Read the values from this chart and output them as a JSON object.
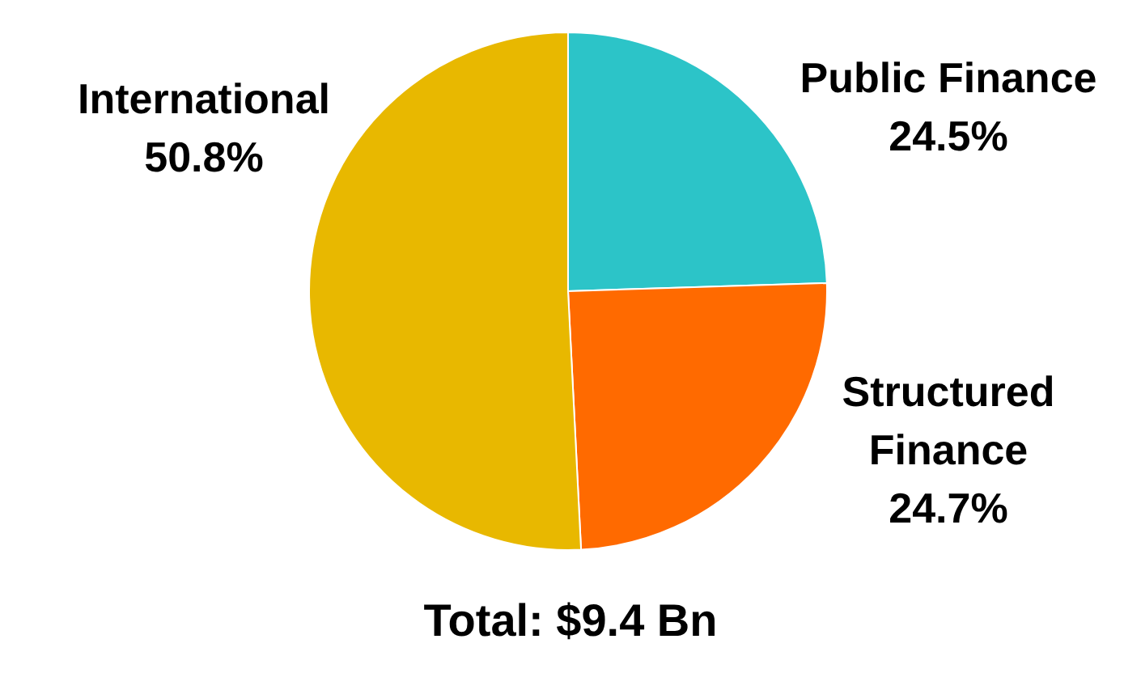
{
  "chart_data": {
    "type": "pie",
    "categories": [
      "Public Finance",
      "Structured Finance",
      "International"
    ],
    "values": [
      24.5,
      24.7,
      50.8
    ],
    "value_labels": [
      "24.5%",
      "24.7%",
      "50.8%"
    ],
    "colors": [
      "#2cc4c8",
      "#ff6a00",
      "#e8b800"
    ],
    "annotations": [
      "Total: $9.4 Bn"
    ]
  }
}
